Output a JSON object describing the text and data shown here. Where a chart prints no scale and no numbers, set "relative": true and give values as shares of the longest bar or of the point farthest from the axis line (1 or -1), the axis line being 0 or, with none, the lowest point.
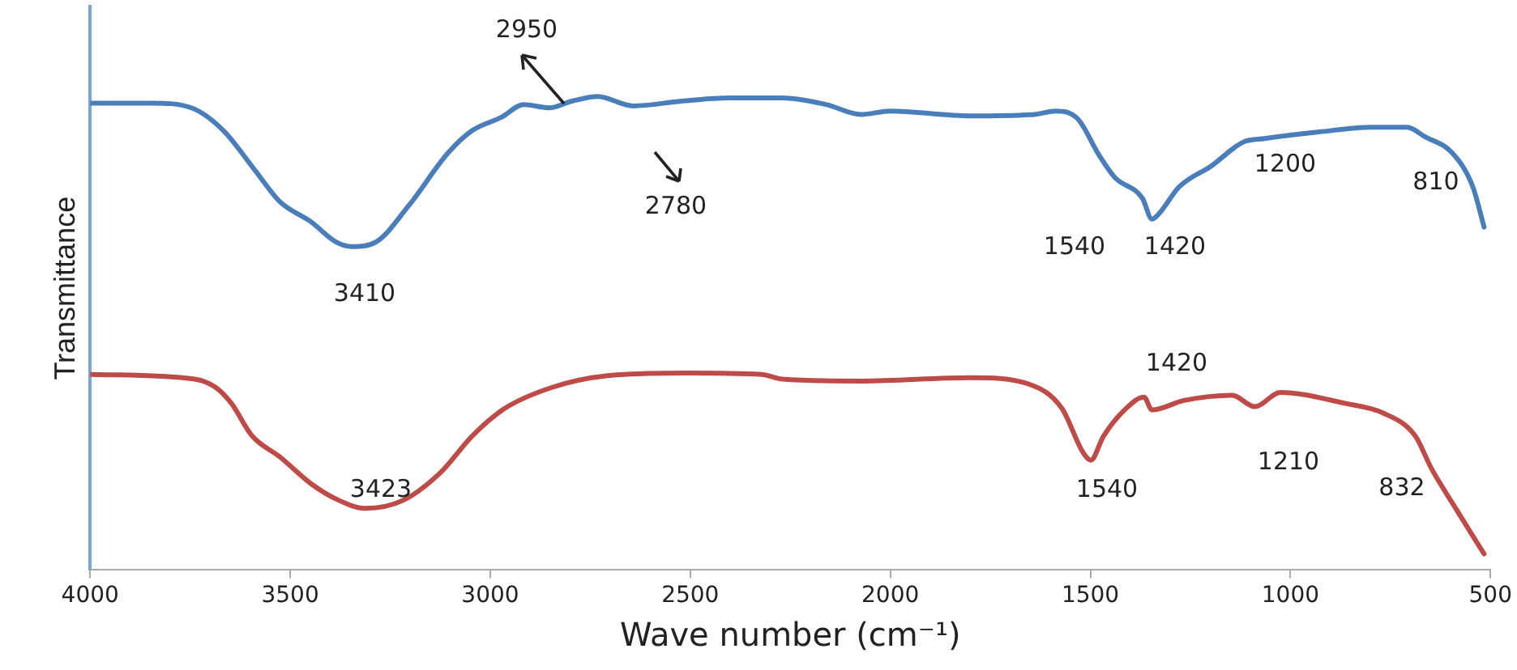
{
  "chart_data": {
    "type": "line",
    "relative": true,
    "xlabel": "Wave number (cm⁻¹)",
    "ylabel": "Transmittance",
    "xlim": [
      4000,
      500
    ],
    "xticks": [
      4000,
      3500,
      3000,
      2500,
      2000,
      1500,
      1000,
      500
    ],
    "grid": false,
    "legend": false,
    "marker": "none",
    "line_style": "solid",
    "series": [
      {
        "color": "#4a7ebb",
        "x": [
          4000,
          3847,
          3747,
          3667,
          3587,
          3526,
          3446,
          3386,
          3346,
          3285,
          3205,
          3105,
          3045,
          2972,
          2916,
          2852,
          2796,
          2731,
          2643,
          2523,
          2403,
          2270,
          2161,
          2073,
          2001,
          1800,
          1640,
          1587,
          1531,
          1479,
          1439,
          1370,
          1346,
          1330,
          1278,
          1198,
          1117,
          1065,
          929,
          797,
          708,
          664,
          596,
          544,
          516
        ],
        "values": [
          0.986,
          0.986,
          0.976,
          0.928,
          0.843,
          0.778,
          0.734,
          0.693,
          0.683,
          0.693,
          0.768,
          0.881,
          0.928,
          0.956,
          0.983,
          0.976,
          0.99,
          1,
          0.98,
          0.99,
          0.997,
          0.997,
          0.983,
          0.962,
          0.969,
          0.959,
          0.962,
          0.969,
          0.952,
          0.877,
          0.829,
          0.785,
          0.741,
          0.751,
          0.809,
          0.853,
          0.904,
          0.911,
          0.925,
          0.935,
          0.935,
          0.915,
          0.881,
          0.809,
          0.724
        ]
      },
      {
        "color": "#be4b48",
        "x": [
          3996,
          3739,
          3687,
          3647,
          3595,
          3526,
          3446,
          3378,
          3314,
          3218,
          3125,
          3045,
          2964,
          2844,
          2711,
          2511,
          2322,
          2270,
          2069,
          1800,
          1652,
          1571,
          1519,
          1499,
          1467,
          1411,
          1366,
          1346,
          1266,
          1146,
          1089,
          1025,
          864,
          767,
          688,
          648,
          584,
          516
        ],
        "values": [
          0.413,
          0.403,
          0.386,
          0.352,
          0.283,
          0.239,
          0.181,
          0.147,
          0.13,
          0.147,
          0.205,
          0.283,
          0.341,
          0.386,
          0.41,
          0.416,
          0.413,
          0.403,
          0.399,
          0.406,
          0.392,
          0.341,
          0.249,
          0.232,
          0.283,
          0.341,
          0.365,
          0.338,
          0.358,
          0.369,
          0.345,
          0.375,
          0.352,
          0.331,
          0.283,
          0.215,
          0.126,
          0.034
        ]
      }
    ],
    "annotations": [
      "3410",
      "2950",
      "2780",
      "1540",
      "1420",
      "1200",
      "810",
      "3423",
      "1420",
      "1540",
      "1210",
      "832"
    ]
  }
}
